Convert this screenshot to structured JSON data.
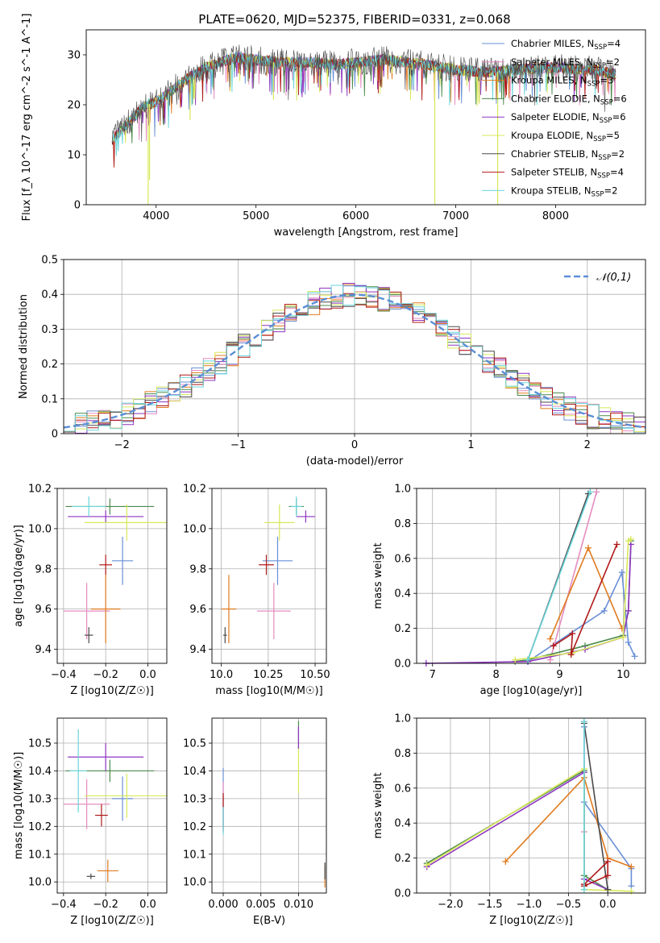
{
  "figure": {
    "title": "PLATE=0620, MJD=52375, FIBERID=0331, z=0.068"
  },
  "models": [
    {
      "name": "Chabrier MILES",
      "nssp": "4",
      "color": "#6a8fd6"
    },
    {
      "name": "Salpeter MILES",
      "nssp": "2",
      "color": "#e58cbf"
    },
    {
      "name": "Kroupa MILES",
      "nssp": "3",
      "color": "#e07b1f"
    },
    {
      "name": "Chabrier ELODIE",
      "nssp": "6",
      "color": "#4c8a4c"
    },
    {
      "name": "Salpeter ELODIE",
      "nssp": "6",
      "color": "#8e35c0"
    },
    {
      "name": "Kroupa ELODIE",
      "nssp": "5",
      "color": "#d8e85a"
    },
    {
      "name": "Chabrier STELIB",
      "nssp": "2",
      "color": "#4a4a4a"
    },
    {
      "name": "Salpeter STELIB",
      "nssp": "4",
      "color": "#b01818"
    },
    {
      "name": "Kroupa STELIB",
      "nssp": "2",
      "color": "#6ad6dc"
    }
  ],
  "chart_data": [
    {
      "id": "spectrum",
      "type": "line",
      "xlabel": "wavelength [Angstrom, rest frame]",
      "ylabel": "Flux [f_λ 10^-17 erg cm^-2 s^-1 A^-1]",
      "xlim": [
        3300,
        8900
      ],
      "ylim": [
        0,
        35
      ],
      "xticks": [
        4000,
        5000,
        6000,
        7000,
        8000
      ],
      "yticks": [
        0,
        10,
        20,
        30
      ],
      "legend": "top-right",
      "continuum": {
        "x": [
          3560,
          3700,
          3900,
          4000,
          4100,
          4300,
          4500,
          4800,
          5000,
          5200,
          5500,
          5800,
          6000,
          6300,
          6500,
          6700,
          7000,
          7300,
          7600,
          8000,
          8400,
          8600
        ],
        "y": [
          13,
          16,
          20,
          20.5,
          22,
          25,
          27.5,
          29.5,
          29,
          28.5,
          28.5,
          28,
          28.5,
          29,
          28.5,
          28,
          27,
          26.5,
          27,
          27.5,
          27,
          26
        ]
      },
      "dips": [
        {
          "x": 3920,
          "y": 0
        },
        {
          "x": 3934,
          "y": 5
        },
        {
          "x": 4340,
          "y": 17
        },
        {
          "x": 5175,
          "y": 21
        },
        {
          "x": 6563,
          "y": 27
        },
        {
          "x": 6790,
          "y": 0
        },
        {
          "x": 7420,
          "y": 0
        }
      ],
      "wiggle": 1.4
    },
    {
      "id": "residuals",
      "type": "bar",
      "xlabel": "(data-model)/error",
      "ylabel": "Normed distribution",
      "xlim": [
        -2.5,
        2.5
      ],
      "ylim": [
        0,
        0.5
      ],
      "xticks": [
        -2,
        -1,
        0,
        1,
        2
      ],
      "yticks": [
        0.0,
        0.1,
        0.2,
        0.3,
        0.4,
        0.5
      ],
      "bin_width": 0.1,
      "reference_label": "𝒩(0,1)",
      "legend": "top-right",
      "scatter": 0.035
    },
    {
      "id": "age_vs_Z",
      "type": "scatter",
      "xlabel": "Z [log10(Z/Z☉)]",
      "ylabel": "age [log10(age/yr)]",
      "xlim": [
        -0.43,
        0.09
      ],
      "ylim": [
        9.33,
        10.2
      ],
      "xticks": [
        -0.4,
        -0.2,
        0.0
      ],
      "yticks": [
        9.4,
        9.6,
        9.8,
        10.0,
        10.2
      ],
      "points": [
        {
          "x": -0.12,
          "y": 9.84,
          "xerr": 0.05,
          "yerr": 0.12
        },
        {
          "x": -0.29,
          "y": 9.59,
          "xerr": 0.11,
          "yerr": 0.14
        },
        {
          "x": -0.2,
          "y": 9.6,
          "xerr": 0.07,
          "yerr": 0.17
        },
        {
          "x": -0.18,
          "y": 10.11,
          "xerr": 0.21,
          "yerr": 0.04
        },
        {
          "x": -0.2,
          "y": 10.06,
          "xerr": 0.18,
          "yerr": 0.03
        },
        {
          "x": -0.1,
          "y": 10.03,
          "xerr": 0.2,
          "yerr": 0.09
        },
        {
          "x": -0.28,
          "y": 9.47,
          "xerr": 0.02,
          "yerr": 0.04
        },
        {
          "x": -0.2,
          "y": 9.82,
          "xerr": 0.03,
          "yerr": 0.05
        },
        {
          "x": -0.28,
          "y": 10.11,
          "xerr": 0.08,
          "yerr": 0.05
        }
      ]
    },
    {
      "id": "age_vs_mass",
      "type": "scatter",
      "xlabel": "mass [log10(M/M☉)]",
      "ylabel": "",
      "xlim": [
        9.95,
        10.56
      ],
      "ylim": [
        9.33,
        10.2
      ],
      "xticks": [
        10.0,
        10.25,
        10.5
      ],
      "yticks": [
        9.4,
        9.6,
        9.8,
        10.0,
        10.2
      ],
      "points": [
        {
          "x": 10.3,
          "y": 9.84,
          "xerr": 0.08,
          "yerr": 0.12
        },
        {
          "x": 10.28,
          "y": 9.59,
          "xerr": 0.09,
          "yerr": 0.14
        },
        {
          "x": 10.04,
          "y": 9.6,
          "xerr": 0.04,
          "yerr": 0.17
        },
        {
          "x": 10.4,
          "y": 10.11,
          "xerr": 0.04,
          "yerr": 0.04
        },
        {
          "x": 10.45,
          "y": 10.06,
          "xerr": 0.05,
          "yerr": 0.03
        },
        {
          "x": 10.31,
          "y": 10.03,
          "xerr": 0.08,
          "yerr": 0.09
        },
        {
          "x": 10.02,
          "y": 9.47,
          "xerr": 0.01,
          "yerr": 0.04
        },
        {
          "x": 10.24,
          "y": 9.82,
          "xerr": 0.04,
          "yerr": 0.05
        },
        {
          "x": 10.4,
          "y": 10.11,
          "xerr": 0.03,
          "yerr": 0.05
        }
      ]
    },
    {
      "id": "weight_vs_age",
      "type": "line",
      "xlabel": "age [log10(age/yr)]",
      "ylabel": "mass weight",
      "xlim": [
        6.75,
        10.35
      ],
      "ylim": [
        0,
        1
      ],
      "xticks": [
        7,
        8,
        9,
        10
      ],
      "yticks": [
        0.0,
        0.2,
        0.4,
        0.6,
        0.8,
        1.0
      ],
      "series": [
        {
          "x": [
            8.5,
            9.7,
            9.98,
            10.08,
            10.18
          ],
          "y": [
            0.01,
            0.3,
            0.52,
            0.12,
            0.04
          ]
        },
        {
          "x": [
            8.85,
            9.58
          ],
          "y": [
            0.02,
            0.98
          ]
        },
        {
          "x": [
            8.85,
            9.45,
            9.98
          ],
          "y": [
            0.14,
            0.66,
            0.2
          ]
        },
        {
          "x": [
            8.3,
            8.5,
            9.4,
            10.0,
            10.08,
            10.12
          ],
          "y": [
            0.01,
            0.02,
            0.1,
            0.16,
            0.3,
            0.7
          ]
        },
        {
          "x": [
            6.9,
            8.5,
            9.4,
            10.0,
            10.08,
            10.12
          ],
          "y": [
            0.0,
            0.01,
            0.08,
            0.15,
            0.3,
            0.68
          ]
        },
        {
          "x": [
            8.3,
            9.2,
            10.0,
            10.08,
            10.12
          ],
          "y": [
            0.02,
            0.06,
            0.15,
            0.7,
            0.71
          ]
        },
        {
          "x": [
            8.5,
            9.45
          ],
          "y": [
            0.02,
            0.97
          ]
        },
        {
          "x": [
            8.9,
            9.2,
            9.18,
            9.9
          ],
          "y": [
            0.1,
            0.17,
            0.05,
            0.68
          ]
        },
        {
          "x": [
            8.5,
            9.48
          ],
          "y": [
            0.02,
            0.98
          ]
        }
      ]
    },
    {
      "id": "mass_vs_Z",
      "type": "scatter",
      "xlabel": "Z [log10(Z/Z☉)]",
      "ylabel": "mass [log10(M/M☉)]",
      "xlim": [
        -0.43,
        0.09
      ],
      "ylim": [
        9.96,
        10.59
      ],
      "xticks": [
        -0.4,
        -0.2,
        0.0
      ],
      "yticks": [
        10.0,
        10.1,
        10.2,
        10.3,
        10.4,
        10.5
      ],
      "points": [
        {
          "x": -0.12,
          "y": 10.3,
          "xerr": 0.05,
          "yerr": 0.08
        },
        {
          "x": -0.29,
          "y": 10.28,
          "xerr": 0.11,
          "yerr": 0.09
        },
        {
          "x": -0.19,
          "y": 10.04,
          "xerr": 0.05,
          "yerr": 0.04
        },
        {
          "x": -0.18,
          "y": 10.4,
          "xerr": 0.21,
          "yerr": 0.04
        },
        {
          "x": -0.2,
          "y": 10.45,
          "xerr": 0.18,
          "yerr": 0.05
        },
        {
          "x": -0.1,
          "y": 10.31,
          "xerr": 0.2,
          "yerr": 0.08
        },
        {
          "x": -0.27,
          "y": 10.02,
          "xerr": 0.02,
          "yerr": 0.01
        },
        {
          "x": -0.22,
          "y": 10.24,
          "xerr": 0.03,
          "yerr": 0.04
        },
        {
          "x": -0.33,
          "y": 10.4,
          "xerr": 0.04,
          "yerr": 0.15
        }
      ]
    },
    {
      "id": "mass_vs_ebv",
      "type": "scatter",
      "xlabel": "E(B-V)",
      "ylabel": "",
      "xlim": [
        -0.0015,
        0.0137
      ],
      "ylim": [
        9.96,
        10.59
      ],
      "xticks": [
        0.0,
        0.005,
        0.01
      ],
      "yticks": [
        10.0,
        10.1,
        10.2,
        10.3,
        10.4,
        10.5
      ],
      "points": [
        {
          "x": 0.0,
          "y": 10.3,
          "xerr": 0.0,
          "yerr": 0.11
        },
        {
          "x": 0.0,
          "y": 10.28,
          "xerr": 0.0,
          "yerr": 0.08
        },
        {
          "x": 0.0135,
          "y": 10.02,
          "xerr": 0.0,
          "yerr": 0.04
        },
        {
          "x": 0.01,
          "y": 10.53,
          "xerr": 0.0,
          "yerr": 0.05
        },
        {
          "x": 0.01,
          "y": 10.52,
          "xerr": 0.0,
          "yerr": 0.04
        },
        {
          "x": 0.01,
          "y": 10.4,
          "xerr": 0.0,
          "yerr": 0.08
        },
        {
          "x": 0.0135,
          "y": 10.04,
          "xerr": 0.0,
          "yerr": 0.03
        },
        {
          "x": 0.0,
          "y": 10.25,
          "xerr": 0.0,
          "yerr": 0.07
        },
        {
          "x": 0.0,
          "y": 10.22,
          "xerr": 0.0,
          "yerr": 0.05
        }
      ]
    },
    {
      "id": "weight_vs_Z",
      "type": "line",
      "xlabel": "Z [log10(Z/Z☉)]",
      "ylabel": "mass weight",
      "xlim": [
        -2.43,
        0.48
      ],
      "ylim": [
        0,
        1
      ],
      "xticks": [
        -2.0,
        -1.5,
        -1.0,
        -0.5,
        0.0
      ],
      "yticks": [
        0.0,
        0.2,
        0.4,
        0.6,
        0.8,
        1.0
      ],
      "series": [
        {
          "x": [
            -0.3,
            -0.3,
            0.3,
            0.3
          ],
          "y": [
            0.95,
            0.52,
            0.14,
            0.04
          ]
        },
        {
          "x": [
            -0.3,
            -0.3,
            -0.3
          ],
          "y": [
            0.98,
            0.35,
            0.05
          ]
        },
        {
          "x": [
            -1.3,
            -0.3,
            0.0,
            0.3
          ],
          "y": [
            0.18,
            0.66,
            0.2,
            0.15
          ]
        },
        {
          "x": [
            -2.3,
            -0.3,
            -0.3,
            0.0
          ],
          "y": [
            0.17,
            0.7,
            0.1,
            0.02
          ]
        },
        {
          "x": [
            -2.3,
            -0.3,
            -0.3,
            0.0
          ],
          "y": [
            0.15,
            0.69,
            0.08,
            0.02
          ]
        },
        {
          "x": [
            -2.3,
            -0.3,
            -0.3,
            0.3
          ],
          "y": [
            0.16,
            0.71,
            0.02,
            0.01
          ]
        },
        {
          "x": [
            -0.3,
            0.0
          ],
          "y": [
            0.97,
            0.02
          ]
        },
        {
          "x": [
            -0.3,
            0.0,
            0.0,
            -0.3
          ],
          "y": [
            0.05,
            0.18,
            0.1,
            0.04
          ]
        },
        {
          "x": [
            -0.3,
            -0.3
          ],
          "y": [
            0.98,
            0.02
          ]
        }
      ]
    }
  ]
}
